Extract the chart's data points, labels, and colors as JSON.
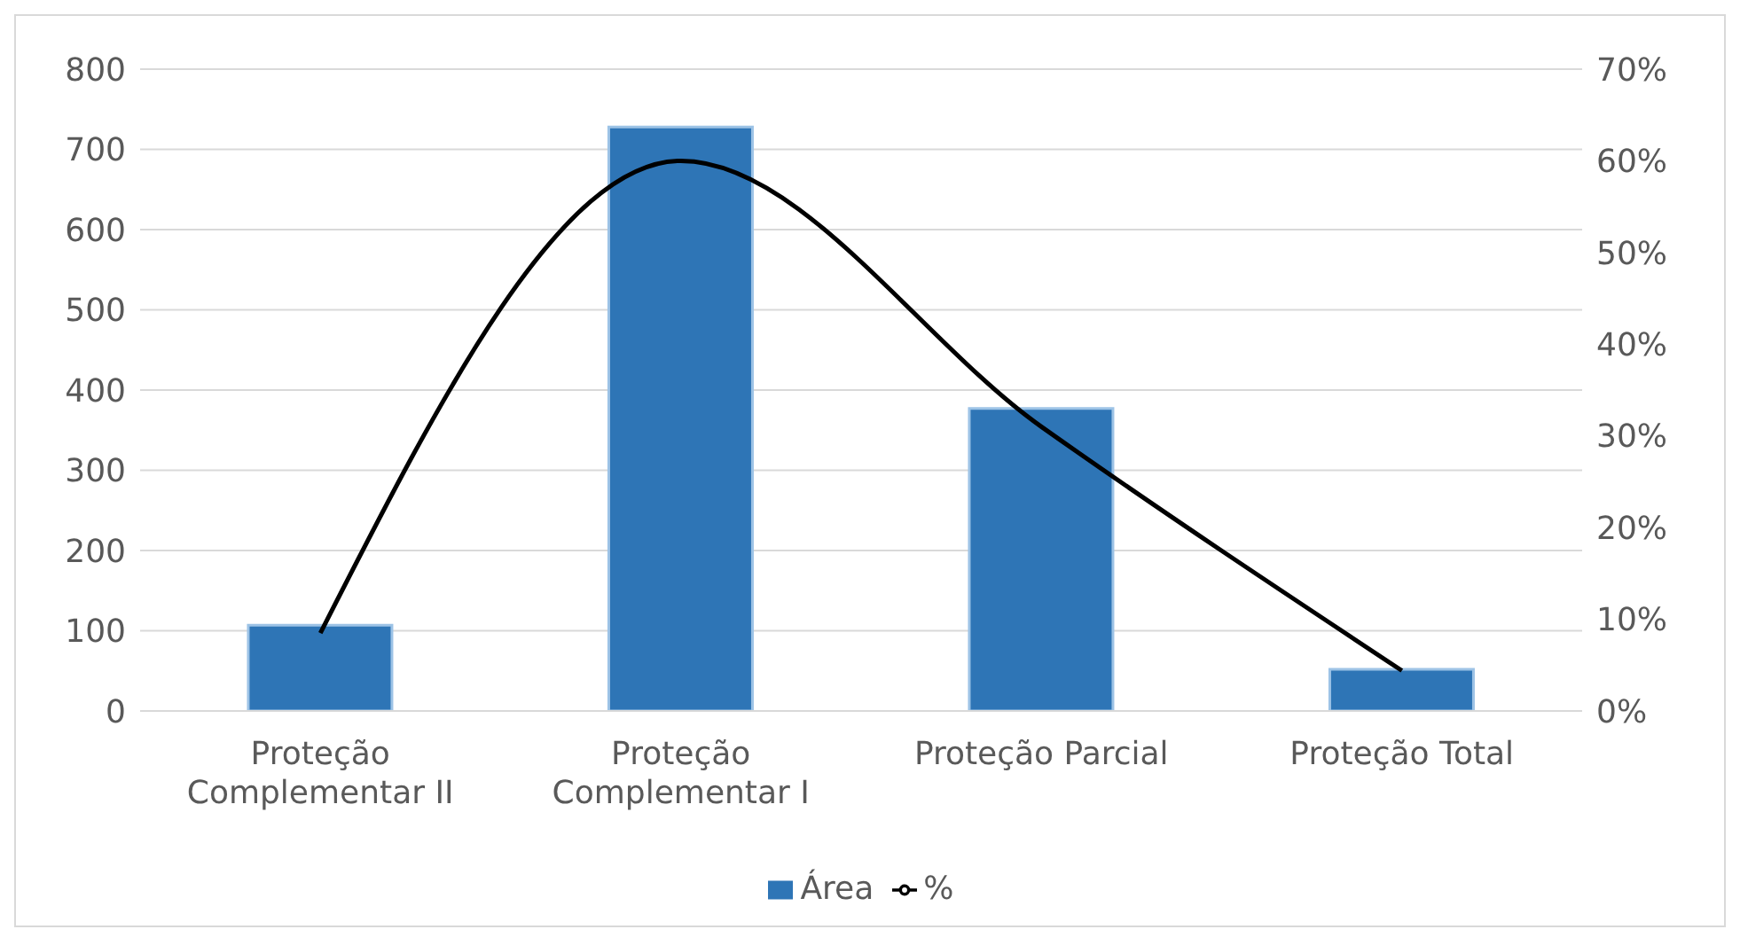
{
  "chart_data": {
    "type": "bar",
    "categories": [
      "Proteção Complementar II",
      "Proteção Complementar I",
      "Proteção Parcial",
      "Proteção Total"
    ],
    "series": [
      {
        "name": "Área",
        "color": "#2e75b6",
        "values": [
          107,
          728,
          377,
          52
        ]
      },
      {
        "name": "%",
        "type": "line",
        "axis": "y2",
        "color": "#000000",
        "values": [
          8.5,
          60,
          31,
          4.4
        ]
      }
    ],
    "ylim": [
      0,
      800
    ],
    "yticks": [
      0,
      100,
      200,
      300,
      400,
      500,
      600,
      700,
      800
    ],
    "y2lim": [
      0,
      70
    ],
    "y2ticks": [
      {
        "value": 0,
        "label": "0%"
      },
      {
        "value": 10,
        "label": "10%"
      },
      {
        "value": 20,
        "label": "20%"
      },
      {
        "value": 30,
        "label": "30%"
      },
      {
        "value": 40,
        "label": "40%"
      },
      {
        "value": 50,
        "label": "50%"
      },
      {
        "value": 60,
        "label": "60%"
      },
      {
        "value": 70,
        "label": "70%"
      }
    ],
    "grid": "y",
    "legend": "bottom",
    "marker": "none",
    "line_style": "solid"
  }
}
